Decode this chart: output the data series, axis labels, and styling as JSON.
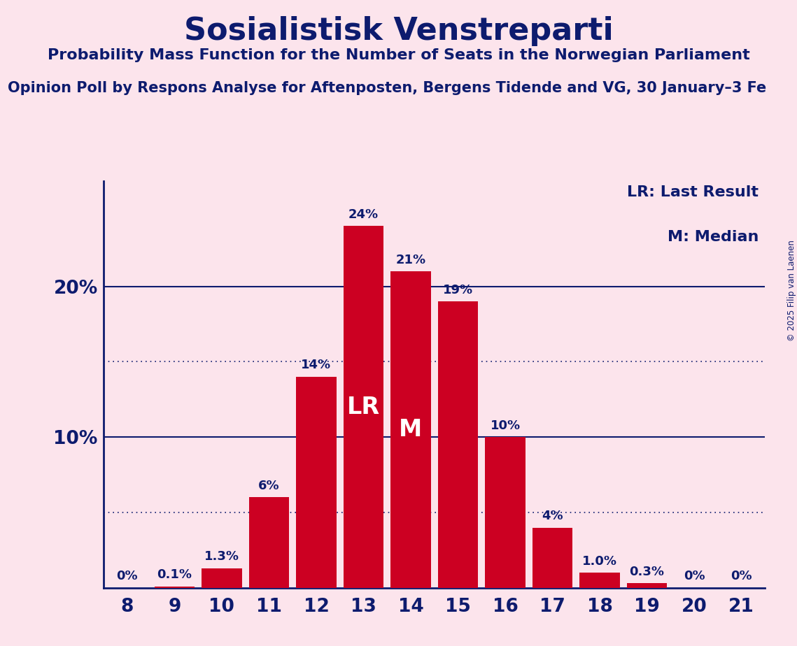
{
  "title": "Sosialistisk Venstreparti",
  "subtitle1": "Probability Mass Function for the Number of Seats in the Norwegian Parliament",
  "subtitle2": "Opinion Poll by Respons Analyse for Aftenposten, Bergens Tidende and VG, 30 January–3 Fe",
  "copyright": "© 2025 Filip van Laenen",
  "seats": [
    8,
    9,
    10,
    11,
    12,
    13,
    14,
    15,
    16,
    17,
    18,
    19,
    20,
    21
  ],
  "probabilities": [
    0.0,
    0.1,
    1.3,
    6.0,
    14.0,
    24.0,
    21.0,
    19.0,
    10.0,
    4.0,
    1.0,
    0.3,
    0.0,
    0.0
  ],
  "labels": [
    "0%",
    "0.1%",
    "1.3%",
    "6%",
    "14%",
    "24%",
    "21%",
    "19%",
    "10%",
    "4%",
    "1.0%",
    "0.3%",
    "0%",
    "0%"
  ],
  "bar_color": "#cc0022",
  "background_color": "#fce4ec",
  "text_color": "#0d1b6e",
  "lr_seat": 13,
  "median_seat": 14,
  "lr_label": "LR",
  "median_label": "M",
  "legend_lr": "LR: Last Result",
  "legend_m": "M: Median",
  "dotted_lines": [
    5.0,
    15.0
  ],
  "solid_lines": [
    10.0,
    20.0
  ],
  "ylim": [
    0,
    27
  ],
  "label_fontsize": 13,
  "inner_label_fontsize": 24,
  "tick_fontsize": 19,
  "legend_fontsize": 16,
  "title_fontsize": 32,
  "subtitle1_fontsize": 16,
  "subtitle2_fontsize": 15
}
